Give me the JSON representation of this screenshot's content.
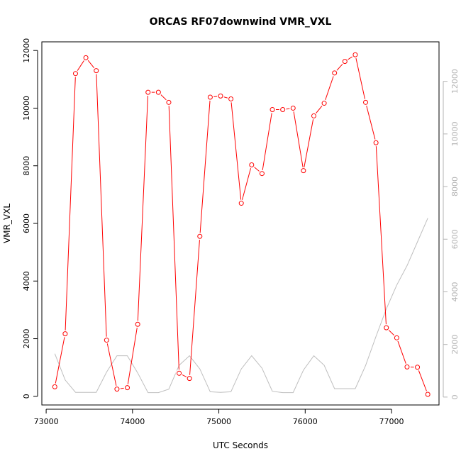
{
  "chart_data": {
    "type": "line",
    "title": "ORCAS RF07downwind VMR_VXL",
    "xlabel": "UTC Seconds",
    "ylabel": "VMR_VXL",
    "xlim": [
      72950,
      77550
    ],
    "ylim": [
      -300,
      12300
    ],
    "ylim_right": [
      -300,
      13500
    ],
    "x_ticks": [
      73000,
      74000,
      75000,
      76000,
      77000
    ],
    "y_ticks": [
      0,
      2000,
      4000,
      6000,
      8000,
      10000,
      12000
    ],
    "y_ticks_right": [
      0,
      2000,
      4000,
      6000,
      8000,
      10000,
      12000
    ],
    "grid": false,
    "series": [
      {
        "axis": "left",
        "color": "#ff0000",
        "marker": "open-circle",
        "x": [
          73100,
          73220,
          73340,
          73460,
          73580,
          73700,
          73820,
          73940,
          74060,
          74180,
          74300,
          74420,
          74540,
          74660,
          74780,
          74900,
          75020,
          75140,
          75260,
          75380,
          75500,
          75620,
          75740,
          75860,
          75980,
          76100,
          76220,
          76340,
          76460,
          76580,
          76700,
          76820,
          76940,
          77060,
          77180,
          77300,
          77420
        ],
        "values": [
          330,
          2170,
          11200,
          11750,
          11300,
          1950,
          250,
          300,
          2500,
          10550,
          10550,
          10200,
          800,
          620,
          5550,
          10380,
          10420,
          10320,
          6700,
          8030,
          7730,
          9950,
          9950,
          10000,
          7830,
          9730,
          10170,
          11220,
          11620,
          11850,
          10200,
          8800,
          2380,
          2030,
          1020,
          1010,
          70
        ]
      },
      {
        "axis": "right",
        "color": "#bebebe",
        "marker": "none",
        "x": [
          73100,
          73220,
          73340,
          73460,
          73580,
          73700,
          73820,
          73940,
          74060,
          74180,
          74300,
          74420,
          74540,
          74660,
          74780,
          74900,
          75020,
          75140,
          75260,
          75380,
          75500,
          75620,
          75740,
          75860,
          75980,
          76100,
          76220,
          76340,
          76460,
          76580,
          76700,
          76820,
          76940,
          77060,
          77180,
          77300,
          77420
        ],
        "values": [
          1650,
          650,
          180,
          180,
          180,
          950,
          1570,
          1570,
          920,
          170,
          170,
          300,
          1210,
          1570,
          1070,
          200,
          180,
          200,
          1070,
          1570,
          1100,
          220,
          170,
          170,
          1030,
          1570,
          1210,
          320,
          320,
          320,
          1200,
          2300,
          3350,
          4250,
          5000,
          5900,
          6800
        ]
      }
    ]
  }
}
